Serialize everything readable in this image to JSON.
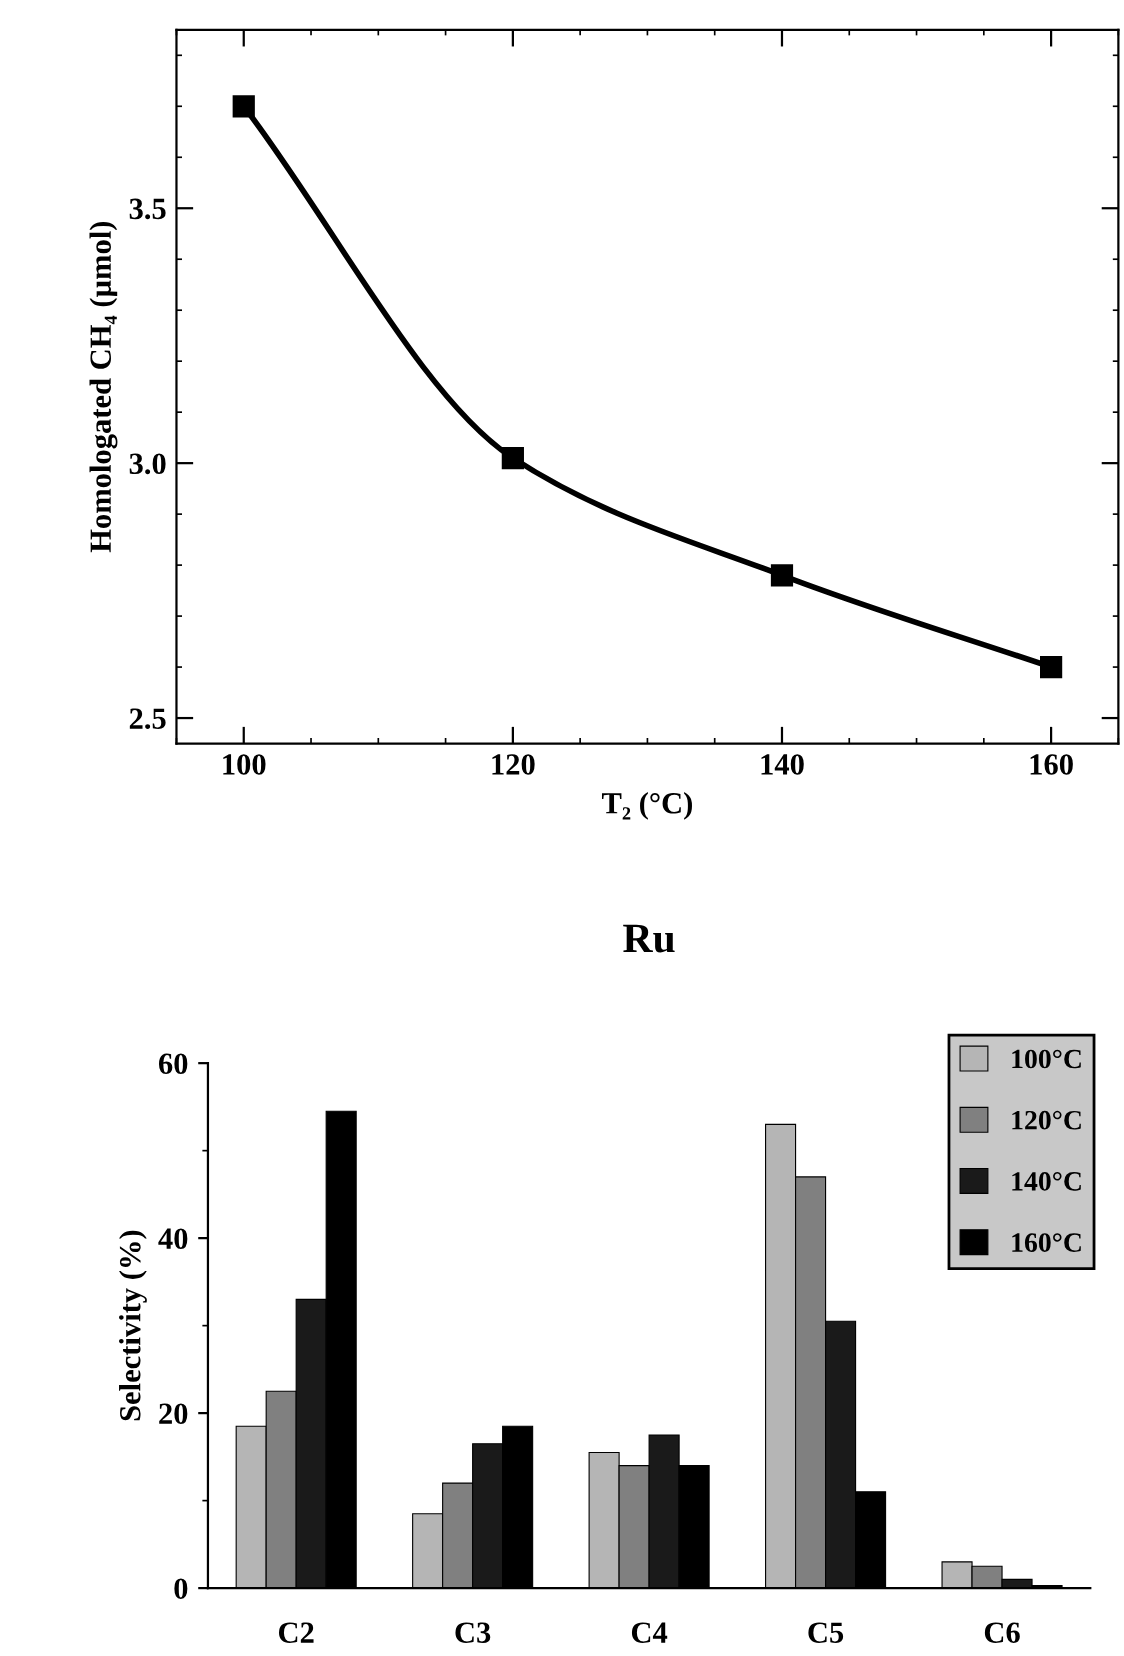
{
  "chart_data": [
    {
      "type": "line",
      "xlabel": "T₂ (°C)",
      "ylabel": "Homologated CH₄ (µmol)",
      "x": [
        100,
        120,
        140,
        160
      ],
      "series": [
        {
          "color": "#000000",
          "values": [
            3.7,
            3.01,
            2.78,
            2.6
          ]
        }
      ],
      "xlim": [
        95,
        165
      ],
      "ylim": [
        2.45,
        3.85
      ],
      "xticks": [
        100,
        120,
        140,
        160
      ],
      "yticks": [
        {
          "value": 2.5,
          "label": "2.5"
        },
        {
          "value": 3.0,
          "label": "3.0"
        },
        {
          "value": 3.5,
          "label": "3.5"
        }
      ],
      "marker": "square",
      "line_style": "solid",
      "grid": false,
      "legend": false
    },
    {
      "type": "bar",
      "title": "Ru",
      "ylabel": "Selectivity (%)",
      "categories": [
        "C2",
        "C3",
        "C4",
        "C5",
        "C6"
      ],
      "series": [
        {
          "name": "100°C",
          "color": "#b5b5b5",
          "values": [
            18.5,
            8.5,
            15.5,
            53,
            3
          ]
        },
        {
          "name": "120°C",
          "color": "#808080",
          "values": [
            22.5,
            12,
            14,
            47,
            2.5
          ]
        },
        {
          "name": "140°C",
          "color": "#1a1a1a",
          "values": [
            33,
            16.5,
            17.5,
            30.5,
            1
          ]
        },
        {
          "name": "160°C",
          "color": "#000000",
          "values": [
            54.5,
            18.5,
            14,
            11,
            0.3
          ]
        }
      ],
      "ylim": [
        0,
        60
      ],
      "yticks": [
        0,
        20,
        40,
        60
      ],
      "grid": false,
      "legend": "top right"
    }
  ]
}
